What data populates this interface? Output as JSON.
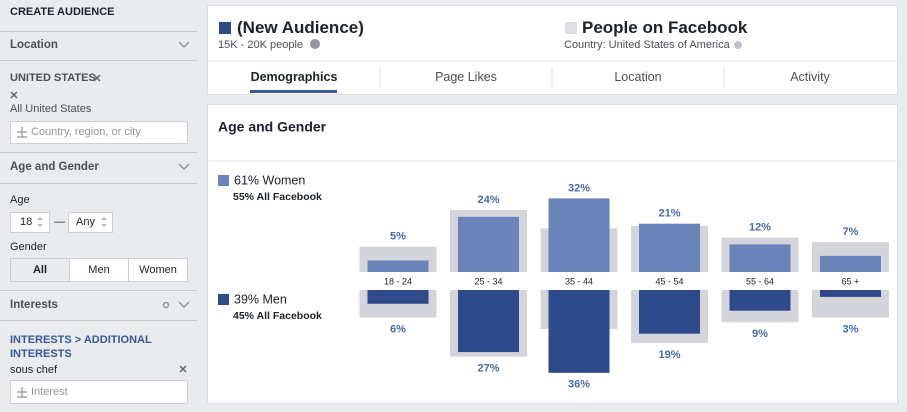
{
  "sidebar": {
    "title": "CREATE AUDIENCE",
    "location": {
      "heading": "Location",
      "country": "UNITED STATES",
      "scope": "All United States",
      "placeholder": "Country, region, or city"
    },
    "age_gender": {
      "heading": "Age and Gender",
      "age_label": "Age",
      "age_min": "18",
      "age_sep": "—",
      "age_max": "Any",
      "gender_label": "Gender",
      "genders": [
        "All",
        "Men",
        "Women"
      ]
    },
    "interests": {
      "heading": "Interests",
      "path": "INTERESTS > ADDITIONAL INTERESTS",
      "item": "sous chef",
      "placeholder": "Interest"
    }
  },
  "header": {
    "audience": "(New Audience)",
    "size": "15K - 20K people",
    "compare": "People on Facebook",
    "compare_sub": "Country: United States of America"
  },
  "tabs": [
    "Demographics",
    "Page Likes",
    "Location",
    "Activity"
  ],
  "chart_data": {
    "type": "bar",
    "title": "Age and Gender",
    "categories": [
      "18 - 24",
      "25 - 34",
      "35 - 44",
      "45 - 54",
      "55 - 64",
      "65 +"
    ],
    "series": [
      {
        "name": "61% Women",
        "subtitle": "55% All Facebook",
        "color": "#6a84b9",
        "values": [
          5,
          24,
          32,
          21,
          12,
          7
        ],
        "value_labels": [
          "5%",
          "24%",
          "32%",
          "21%",
          "12%",
          "7%"
        ],
        "baseline_values": [
          11,
          27,
          19,
          20,
          15,
          13
        ]
      },
      {
        "name": "39% Men",
        "subtitle": "45% All Facebook",
        "color": "#2f4a8a",
        "values": [
          6,
          27,
          36,
          19,
          9,
          3
        ],
        "value_labels": [
          "6%",
          "27%",
          "36%",
          "19%",
          "9%",
          "3%"
        ],
        "baseline_values": [
          12,
          29,
          17,
          23,
          14,
          12
        ]
      }
    ],
    "baseline_color": "#d4d5da"
  }
}
